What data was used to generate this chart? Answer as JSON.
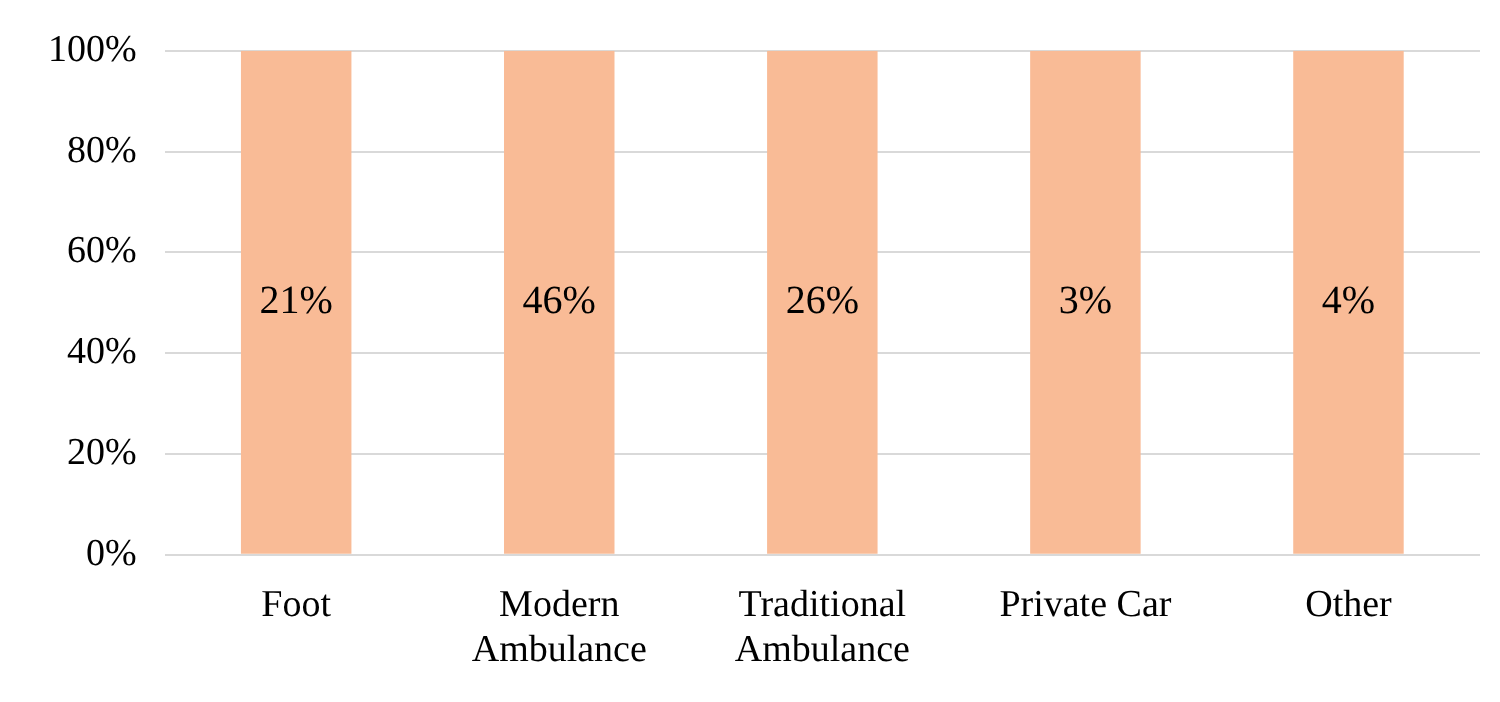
{
  "chart_data": {
    "type": "bar",
    "categories": [
      "Foot",
      "Modern\nAmbulance",
      "Traditional\nAmbulance",
      "Private Car",
      "Other"
    ],
    "values": [
      100,
      100,
      100,
      100,
      100
    ],
    "annotations": [
      "21%",
      "46%",
      "26%",
      "3%",
      "4%"
    ],
    "color": "#f9bb96",
    "ylim": [
      0,
      100
    ],
    "yticks": [
      {
        "value": 0,
        "label": "0%"
      },
      {
        "value": 20,
        "label": "20%"
      },
      {
        "value": 40,
        "label": "40%"
      },
      {
        "value": 60,
        "label": "60%"
      },
      {
        "value": 80,
        "label": "80%"
      },
      {
        "value": 100,
        "label": "100%"
      }
    ],
    "grid": "y"
  }
}
